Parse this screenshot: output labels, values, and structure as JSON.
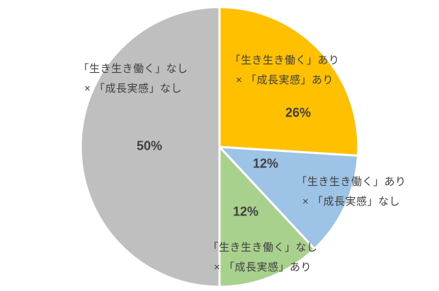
{
  "chart_data": {
    "type": "pie",
    "title": "",
    "legend": "none",
    "background": "#FFFFFF",
    "text_color": "#404040",
    "separator_color": "#FFFFFF",
    "start_angle_deg": 0,
    "direction": "clockwise",
    "slices": [
      {
        "name": "「生き生き働く」あり×「成長実感」あり",
        "label_line1": "「生き生き働く」あり",
        "label_line2": "× 「成長実感」あり",
        "value": 26,
        "pct_label": "26%",
        "color": "#FFC000"
      },
      {
        "name": "「生き生き働く」あり×「成長実感」なし",
        "label_line1": "「生き生き働く」あり",
        "label_line2": "× 「成長実感」なし",
        "value": 12,
        "pct_label": "12%",
        "color": "#9DC3E6"
      },
      {
        "name": "「生き生き働く」なし×「成長実感」あり",
        "label_line1": "「生き生き働く」なし",
        "label_line2": "× 「成長実感」あり",
        "value": 12,
        "pct_label": "12%",
        "color": "#A9D18E"
      },
      {
        "name": "「生き生き働く」なし×「成長実感」なし",
        "label_line1": "「生き生き働く」なし",
        "label_line2": "× 「成長実感」なし",
        "value": 50,
        "pct_label": "50%",
        "color": "#BFBFBF"
      }
    ]
  }
}
